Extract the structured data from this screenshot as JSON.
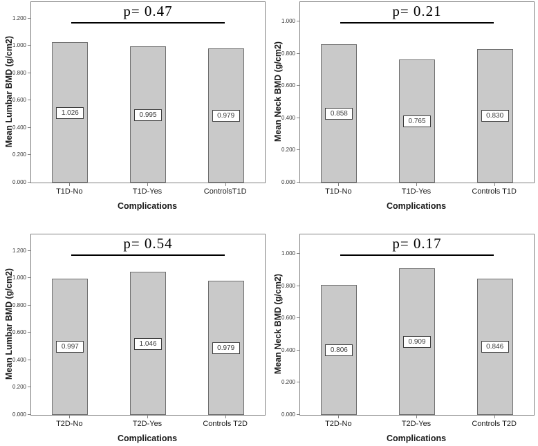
{
  "style": {
    "bar_fill": "#c9c9c9",
    "bar_border": "#6e6e6e",
    "frame_color": "#808080",
    "p_line_color": "#000000",
    "value_box_border": "#3c3c3c",
    "text_color": "#1a1a1a"
  },
  "chart_data": [
    {
      "type": "bar",
      "position": "top-left",
      "p_label": "p= 0.47",
      "ylabel": "Mean Lumbar BMD (g/cm2)",
      "xlabel": "Complications",
      "categories": [
        "T1D-No",
        "T1D-Yes",
        "ControlsT1D"
      ],
      "values": [
        1.026,
        0.995,
        0.979
      ],
      "bar_value_labels": [
        "1.026",
        "0.995",
        "0.979"
      ],
      "yticks": [
        "0.000",
        "0.200",
        "0.400",
        "0.600",
        "0.800",
        "1.000",
        "1.200"
      ],
      "ylim": [
        0,
        1.32
      ],
      "grid": false
    },
    {
      "type": "bar",
      "position": "top-right",
      "p_label": "p= 0.21",
      "ylabel": "Mean Neck BMD (g/cm2)",
      "xlabel": "Complications",
      "categories": [
        "T1D-No",
        "T1D-Yes",
        "Controls T1D"
      ],
      "values": [
        0.858,
        0.765,
        0.83
      ],
      "bar_value_labels": [
        "0.858",
        "0.765",
        "0.830"
      ],
      "yticks": [
        "0.000",
        "0.200",
        "0.400",
        "0.600",
        "0.800",
        "1.000"
      ],
      "ylim": [
        0,
        1.12
      ],
      "grid": false
    },
    {
      "type": "bar",
      "position": "bottom-left",
      "p_label": "p= 0.54",
      "ylabel": "Mean Lumbar BMD (g/cm2)",
      "xlabel": "Complications",
      "categories": [
        "T2D-No",
        "T2D-Yes",
        "Controls T2D"
      ],
      "values": [
        0.997,
        1.046,
        0.979
      ],
      "bar_value_labels": [
        "0.997",
        "1.046",
        "0.979"
      ],
      "yticks": [
        "0.000",
        "0.200",
        "0.400",
        "0.600",
        "0.800",
        "1.000",
        "1.200"
      ],
      "ylim": [
        0,
        1.32
      ],
      "grid": false
    },
    {
      "type": "bar",
      "position": "bottom-right",
      "p_label": "p= 0.17",
      "ylabel": "Mean Neck BMD (g/cm2)",
      "xlabel": "Complications",
      "categories": [
        "T2D-No",
        "T2D-Yes",
        "Controls T2D"
      ],
      "values": [
        0.806,
        0.909,
        0.846
      ],
      "bar_value_labels": [
        "0.806",
        "0.909",
        "0.846"
      ],
      "yticks": [
        "0.000",
        "0.200",
        "0.400",
        "0.600",
        "0.800",
        "1.000"
      ],
      "ylim": [
        0,
        1.12
      ],
      "grid": false
    }
  ]
}
